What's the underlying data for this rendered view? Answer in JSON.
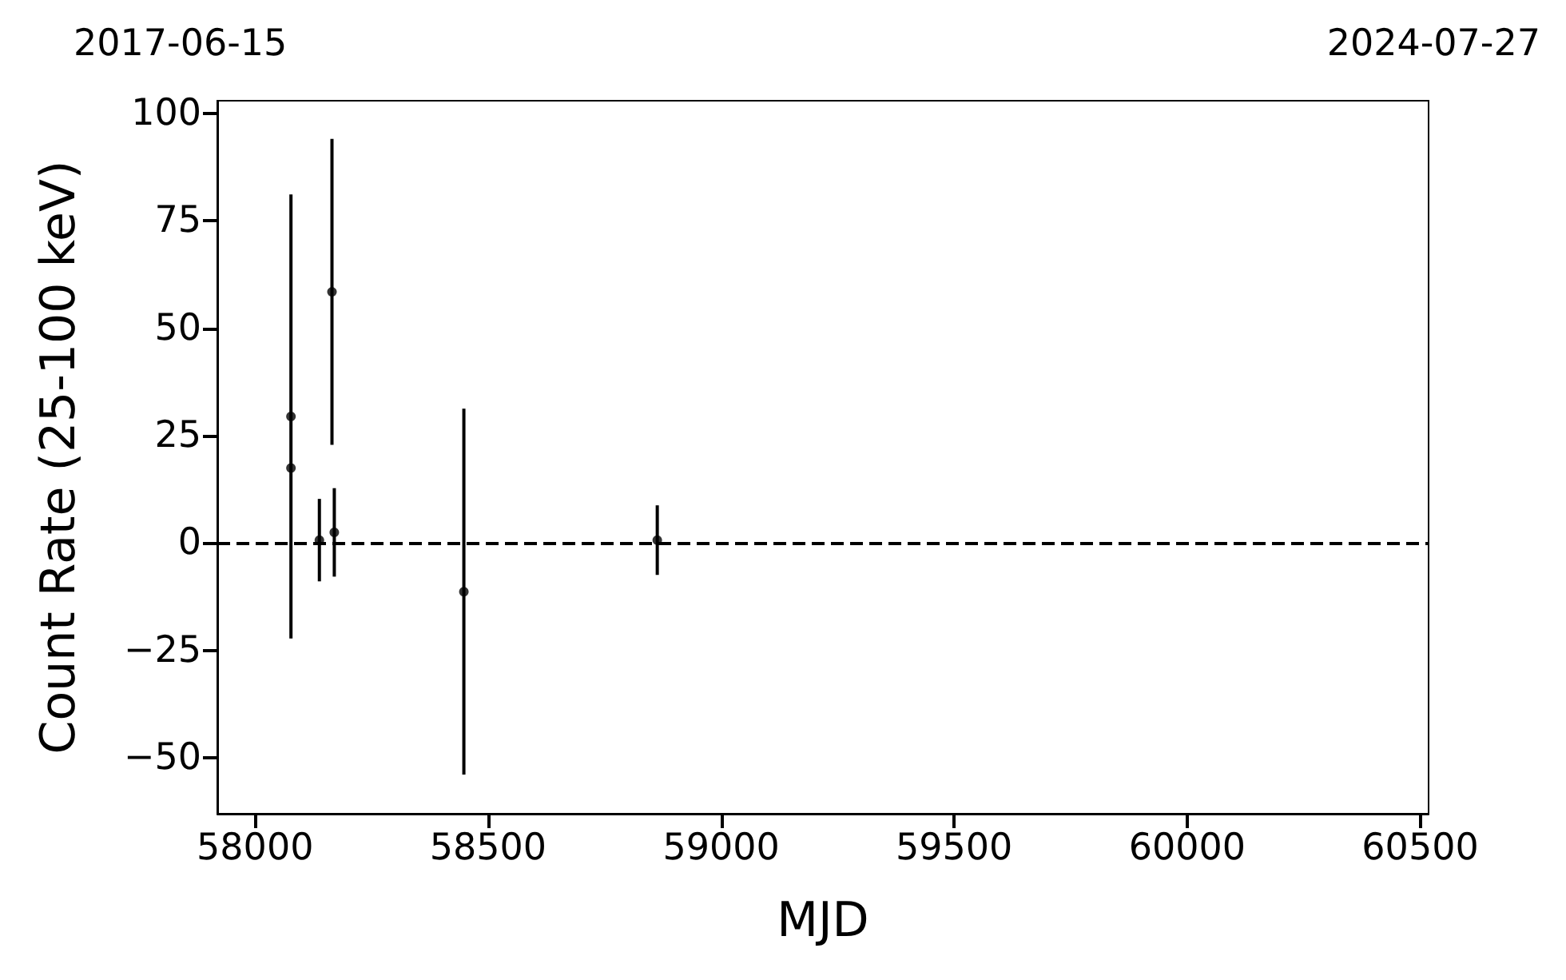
{
  "chart_data": {
    "type": "scatter",
    "xlabel": "MJD",
    "ylabel": "Count Rate (25-100 keV)",
    "annotations": [
      "2017-06-15",
      "2024-07-27"
    ],
    "x": [
      58077,
      58077,
      58138,
      58170,
      58165,
      58448,
      58863
    ],
    "values": [
      29.5,
      17.5,
      0.7,
      2.5,
      58.5,
      -11.3,
      0.7
    ],
    "errors": [
      51.7,
      null,
      9.6,
      10.3,
      35.6,
      42.6,
      8.1
    ],
    "color": "#000000",
    "marker": "circle",
    "xlim": [
      57919,
      60518
    ],
    "xticks": [
      58000,
      58500,
      59000,
      59500,
      60000,
      60500
    ],
    "ylim": [
      -63,
      103
    ],
    "yticks": [
      -50,
      -25,
      0,
      25,
      50,
      75,
      100
    ],
    "ref_lines": [
      {
        "axis": "y",
        "value": 0,
        "color": "#000000",
        "line_style": "dashed"
      }
    ],
    "grid": false
  }
}
